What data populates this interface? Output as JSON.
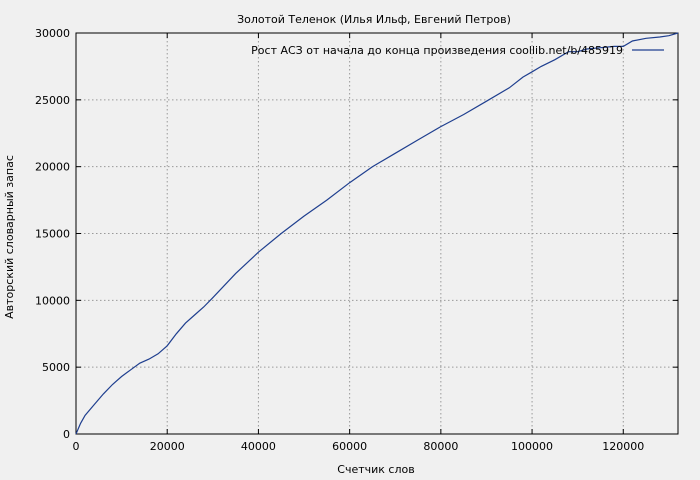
{
  "chart_data": {
    "type": "line",
    "title": "Золотой Теленок (Илья Ильф, Евгений Петров)",
    "xlabel": "Счетчик слов",
    "ylabel": "Авторский словарный запас",
    "xlim": [
      0,
      132000
    ],
    "ylim": [
      0,
      30000
    ],
    "x_ticks": [
      0,
      20000,
      40000,
      60000,
      80000,
      100000,
      120000
    ],
    "y_ticks": [
      0,
      5000,
      10000,
      15000,
      20000,
      25000,
      30000
    ],
    "grid": true,
    "legend_position": "top-right",
    "series": [
      {
        "name": "Рост АСЗ от начала до конца произведения coollib.net/b/485919",
        "color": "#1f3f8f",
        "x": [
          0,
          1000,
          2000,
          4000,
          6000,
          8000,
          10000,
          12000,
          14000,
          16000,
          18000,
          20000,
          22000,
          24000,
          26000,
          28000,
          30000,
          35000,
          40000,
          45000,
          50000,
          55000,
          60000,
          65000,
          70000,
          75000,
          80000,
          85000,
          90000,
          95000,
          98000,
          100000,
          102000,
          105000,
          108000,
          110000,
          112000,
          115000,
          118000,
          120000,
          122000,
          125000,
          128000,
          130000,
          132000
        ],
        "y": [
          0,
          800,
          1400,
          2200,
          3000,
          3700,
          4300,
          4800,
          5300,
          5600,
          6000,
          6600,
          7500,
          8300,
          8900,
          9500,
          10200,
          12000,
          13600,
          15000,
          16300,
          17500,
          18800,
          20000,
          21000,
          22000,
          23000,
          23900,
          24900,
          25900,
          26700,
          27100,
          27500,
          28000,
          28600,
          28600,
          28800,
          28900,
          29000,
          29000,
          29400,
          29600,
          29700,
          29800,
          30000
        ]
      }
    ]
  }
}
